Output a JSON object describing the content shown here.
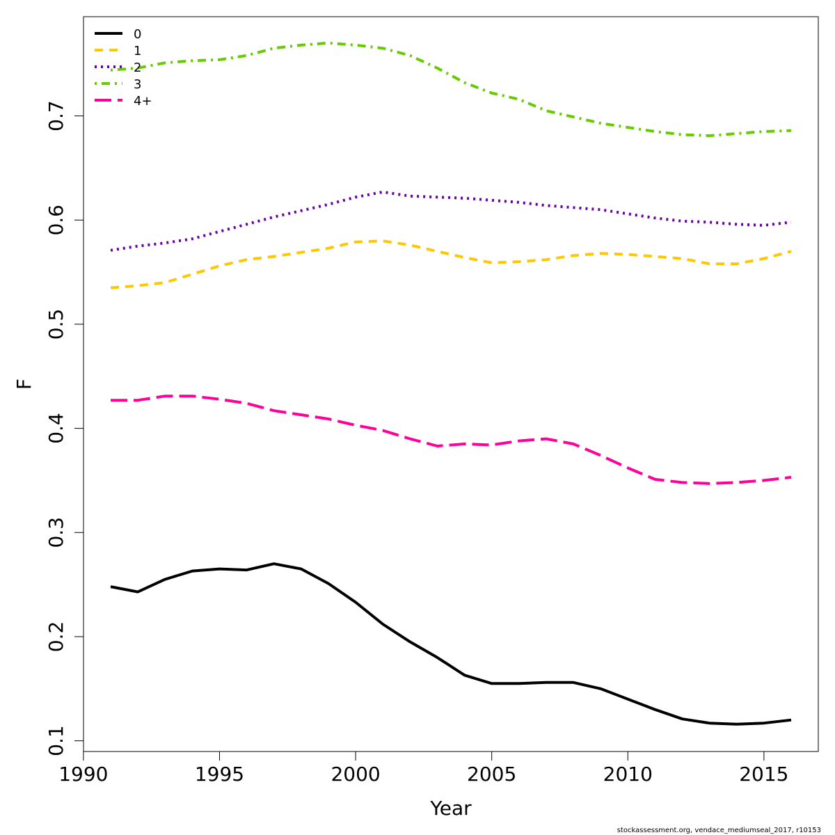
{
  "chart_data": {
    "type": "line",
    "xlabel": "Year",
    "ylabel": "F",
    "xlim": [
      1990,
      2017
    ],
    "ylim": [
      0.1,
      0.77
    ],
    "xticks": [
      1990,
      1995,
      2000,
      2005,
      2010,
      2015
    ],
    "yticks": [
      0.1,
      0.2,
      0.3,
      0.4,
      0.5,
      0.6,
      0.7
    ],
    "x": [
      1991,
      1992,
      1993,
      1994,
      1995,
      1996,
      1997,
      1998,
      1999,
      2000,
      2001,
      2002,
      2003,
      2004,
      2005,
      2006,
      2007,
      2008,
      2009,
      2010,
      2011,
      2012,
      2013,
      2014,
      2015,
      2016
    ],
    "legend_position": "top-left",
    "grid": false,
    "series": [
      {
        "name": "0",
        "color": "#000000",
        "dash": "solid",
        "values": [
          0.248,
          0.243,
          0.255,
          0.263,
          0.265,
          0.264,
          0.27,
          0.265,
          0.251,
          0.233,
          0.212,
          0.195,
          0.18,
          0.163,
          0.155,
          0.155,
          0.156,
          0.156,
          0.15,
          0.14,
          0.13,
          0.121,
          0.117,
          0.116,
          0.117,
          0.12
        ]
      },
      {
        "name": "1",
        "color": "#FFC700",
        "dash": "dashed",
        "values": [
          0.535,
          0.537,
          0.54,
          0.548,
          0.556,
          0.562,
          0.565,
          0.569,
          0.573,
          0.579,
          0.58,
          0.576,
          0.57,
          0.564,
          0.559,
          0.56,
          0.562,
          0.566,
          0.568,
          0.567,
          0.565,
          0.563,
          0.558,
          0.558,
          0.563,
          0.57
        ]
      },
      {
        "name": "2",
        "color": "#6600AA",
        "dash": "dotted",
        "values": [
          0.571,
          0.575,
          0.578,
          0.582,
          0.589,
          0.596,
          0.603,
          0.609,
          0.615,
          0.622,
          0.627,
          0.623,
          0.622,
          0.621,
          0.619,
          0.617,
          0.614,
          0.612,
          0.61,
          0.606,
          0.602,
          0.599,
          0.598,
          0.596,
          0.595,
          0.598
        ]
      },
      {
        "name": "3",
        "color": "#66CC00",
        "dash": "dotdash",
        "values": [
          0.744,
          0.746,
          0.751,
          0.753,
          0.754,
          0.758,
          0.765,
          0.768,
          0.77,
          0.768,
          0.765,
          0.758,
          0.746,
          0.732,
          0.722,
          0.716,
          0.705,
          0.699,
          0.693,
          0.689,
          0.685,
          0.682,
          0.681,
          0.683,
          0.685,
          0.686
        ]
      },
      {
        "name": "4+",
        "color": "#FF0099",
        "dash": "longdash",
        "values": [
          0.427,
          0.427,
          0.431,
          0.431,
          0.428,
          0.424,
          0.417,
          0.413,
          0.409,
          0.403,
          0.398,
          0.39,
          0.383,
          0.385,
          0.384,
          0.388,
          0.39,
          0.385,
          0.374,
          0.362,
          0.351,
          0.348,
          0.347,
          0.348,
          0.35,
          0.353
        ]
      }
    ]
  },
  "footer": {
    "note": "stockassessment.org, vendace_mediumseal_2017, r10153"
  }
}
